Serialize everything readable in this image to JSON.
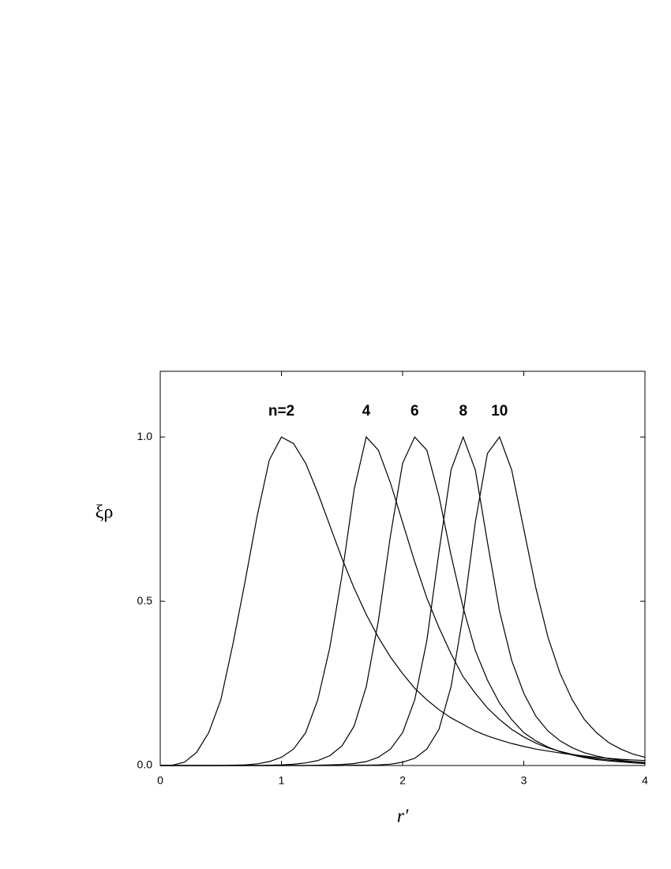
{
  "chart_data": {
    "type": "line",
    "x_label": "r′",
    "y_label": "ξρ",
    "x": [
      0,
      0.1,
      0.2,
      0.3,
      0.4,
      0.5,
      0.6,
      0.7,
      0.8,
      0.9,
      1.0,
      1.1,
      1.2,
      1.3,
      1.4,
      1.5,
      1.6,
      1.7,
      1.8,
      1.9,
      2.0,
      2.1,
      2.2,
      2.3,
      2.4,
      2.5,
      2.6,
      2.7,
      2.8,
      2.9,
      3.0,
      3.1,
      3.2,
      3.3,
      3.4,
      3.5,
      3.6,
      3.7,
      3.8,
      3.9,
      4.0
    ],
    "series": [
      {
        "name": "n=2",
        "color": "#000000",
        "values": [
          0,
          0.001,
          0.01,
          0.04,
          0.1,
          0.2,
          0.37,
          0.56,
          0.76,
          0.93,
          1.0,
          0.98,
          0.92,
          0.83,
          0.73,
          0.63,
          0.54,
          0.46,
          0.39,
          0.33,
          0.28,
          0.235,
          0.2,
          0.17,
          0.145,
          0.125,
          0.105,
          0.09,
          0.078,
          0.067,
          0.058,
          0.05,
          0.044,
          0.038,
          0.033,
          0.029,
          0.025,
          0.022,
          0.019,
          0.017,
          0.015
        ]
      },
      {
        "name": "4",
        "color": "#000000",
        "values": [
          0,
          0,
          0,
          0,
          0,
          0,
          0.001,
          0.002,
          0.005,
          0.012,
          0.025,
          0.05,
          0.1,
          0.2,
          0.36,
          0.58,
          0.84,
          1.0,
          0.96,
          0.86,
          0.74,
          0.62,
          0.51,
          0.42,
          0.34,
          0.27,
          0.22,
          0.175,
          0.14,
          0.11,
          0.087,
          0.068,
          0.054,
          0.043,
          0.034,
          0.027,
          0.021,
          0.017,
          0.013,
          0.011,
          0.009
        ]
      },
      {
        "name": "6",
        "color": "#000000",
        "values": [
          0,
          0,
          0,
          0,
          0,
          0,
          0,
          0,
          0,
          0.001,
          0.002,
          0.004,
          0.008,
          0.015,
          0.03,
          0.06,
          0.12,
          0.24,
          0.44,
          0.7,
          0.92,
          1.0,
          0.96,
          0.82,
          0.64,
          0.48,
          0.35,
          0.26,
          0.19,
          0.14,
          0.1,
          0.075,
          0.056,
          0.042,
          0.032,
          0.024,
          0.018,
          0.014,
          0.011,
          0.008,
          0.006
        ]
      },
      {
        "name": "8",
        "color": "#000000",
        "values": [
          0,
          0,
          0,
          0,
          0,
          0,
          0,
          0,
          0,
          0,
          0,
          0,
          0,
          0.001,
          0.002,
          0.003,
          0.006,
          0.012,
          0.025,
          0.05,
          0.1,
          0.2,
          0.38,
          0.65,
          0.9,
          1.0,
          0.9,
          0.68,
          0.47,
          0.32,
          0.22,
          0.15,
          0.105,
          0.075,
          0.054,
          0.039,
          0.029,
          0.021,
          0.016,
          0.012,
          0.009
        ]
      },
      {
        "name": "10",
        "color": "#000000",
        "values": [
          0,
          0,
          0,
          0,
          0,
          0,
          0,
          0,
          0,
          0,
          0,
          0,
          0,
          0,
          0,
          0,
          0.001,
          0.001,
          0.002,
          0.004,
          0.01,
          0.022,
          0.05,
          0.11,
          0.24,
          0.46,
          0.74,
          0.95,
          1.0,
          0.9,
          0.72,
          0.54,
          0.39,
          0.28,
          0.2,
          0.14,
          0.1,
          0.07,
          0.05,
          0.035,
          0.025
        ]
      }
    ],
    "xlim": [
      0,
      4
    ],
    "xticks": [
      0,
      1,
      2,
      3,
      4
    ],
    "ylim": [
      0,
      1.2
    ],
    "yticks": [
      {
        "value": 0,
        "label": "0.0"
      },
      0.5,
      {
        "value": 1,
        "label": "1.0"
      }
    ],
    "grid": false
  }
}
